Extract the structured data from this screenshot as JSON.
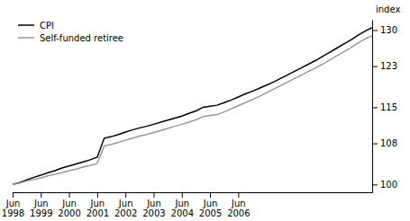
{
  "chart_data": {
    "type": "line",
    "ylabel": "index",
    "ylim": [
      98.5,
      132
    ],
    "yticks": [
      100,
      108,
      115,
      123,
      130
    ],
    "grid": false,
    "legend": "upper left",
    "categories": [
      "Jun\n1998",
      null,
      null,
      null,
      "Jun\n1999",
      null,
      null,
      null,
      "Jun\n2000",
      null,
      null,
      null,
      "Jun\n2001",
      null,
      null,
      null,
      "Jun\n2002",
      null,
      null,
      null,
      "Jun\n2003",
      null,
      null,
      null,
      "Jun\n2004",
      null,
      null,
      null,
      "Jun\n2005",
      null,
      null,
      null,
      "Jun\n2006",
      null,
      null,
      null,
      null,
      null,
      null,
      null,
      null,
      null,
      null,
      null,
      null,
      null,
      null,
      null,
      null,
      null,
      null,
      null
    ],
    "series": [
      {
        "name": "CPI",
        "color": "#000000",
        "values": [
          100.0,
          100.4,
          100.9,
          101.4,
          101.8,
          102.3,
          102.7,
          103.2,
          103.6,
          104.0,
          104.4,
          104.8,
          105.3,
          109.0,
          109.3,
          109.7,
          110.2,
          110.6,
          111.0,
          111.3,
          111.7,
          112.1,
          112.5,
          112.9,
          113.3,
          113.8,
          114.3,
          115.0,
          115.2,
          115.4,
          115.9,
          116.4,
          117.0,
          117.6,
          118.1,
          118.7,
          119.3,
          119.9,
          120.6,
          121.3,
          122.0,
          122.7,
          123.4,
          124.1,
          124.9,
          125.7,
          126.5,
          127.3,
          128.1,
          129.0,
          129.8,
          130.5
        ]
      },
      {
        "name": "Self-funded retiree",
        "color": "#999999",
        "values": [
          100.0,
          100.3,
          100.7,
          101.0,
          101.3,
          101.7,
          102.0,
          102.3,
          102.7,
          103.0,
          103.4,
          103.7,
          104.1,
          107.5,
          107.8,
          108.2,
          108.6,
          109.0,
          109.4,
          109.7,
          110.1,
          110.5,
          110.9,
          111.3,
          111.7,
          112.1,
          112.6,
          113.2,
          113.4,
          113.6,
          114.1,
          114.7,
          115.3,
          115.9,
          116.5,
          117.1,
          117.8,
          118.5,
          119.2,
          119.9,
          120.6,
          121.3,
          122.0,
          122.7,
          123.4,
          124.2,
          125.0,
          125.8,
          126.6,
          127.5,
          128.3,
          128.9
        ]
      }
    ]
  }
}
